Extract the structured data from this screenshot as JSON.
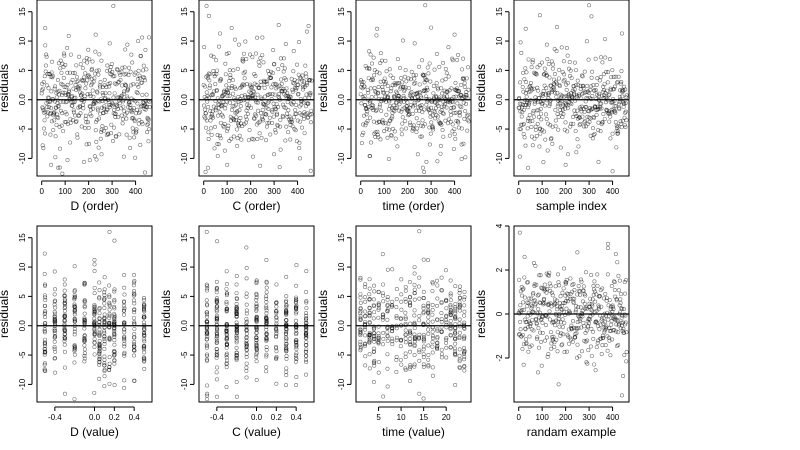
{
  "chart_data": [
    {
      "type": "scatter",
      "xlabel": "D (order)",
      "ylabel": "residuals",
      "xlim": [
        -20,
        470
      ],
      "ylim": [
        -13,
        17
      ],
      "xticks": [
        0,
        100,
        200,
        300,
        400
      ],
      "yticks": [
        -10,
        -5,
        0,
        5,
        10,
        15
      ],
      "ytick_labels": [
        "-10",
        "-5",
        "0.0",
        "5",
        "10",
        "15"
      ],
      "hline": 0,
      "x_kind": "uniform",
      "n_points": 460,
      "points": [
        [
          15,
          12.2
        ],
        [
          40,
          -11.1
        ],
        [
          70,
          -11.6
        ],
        [
          88,
          -12.6
        ],
        [
          110,
          -10.3
        ],
        [
          180,
          -10.6
        ],
        [
          205,
          -10.3
        ],
        [
          230,
          11.1
        ],
        [
          255,
          -9.3
        ],
        [
          290,
          9.6
        ],
        [
          305,
          16.0
        ],
        [
          350,
          -9.7
        ],
        [
          365,
          9.4
        ],
        [
          440,
          -12.4
        ]
      ]
    },
    {
      "type": "scatter",
      "xlabel": "C (order)",
      "ylabel": "residuals",
      "xlim": [
        -20,
        470
      ],
      "ylim": [
        -13,
        17
      ],
      "xticks": [
        0,
        100,
        200,
        300,
        400
      ],
      "yticks": [
        -10,
        -5,
        0,
        5,
        10,
        15
      ],
      "ytick_labels": [
        "-10",
        "-5",
        "0.0",
        "5",
        "10",
        "15"
      ],
      "hline": 0,
      "x_kind": "uniform",
      "n_points": 460,
      "points": [
        [
          8,
          -12.3
        ],
        [
          12,
          16.0
        ],
        [
          22,
          14.3
        ],
        [
          18,
          -11.6
        ],
        [
          60,
          -9.6
        ],
        [
          70,
          11.3
        ],
        [
          100,
          -11.1
        ],
        [
          150,
          9.4
        ],
        [
          210,
          -9.7
        ],
        [
          250,
          10.6
        ],
        [
          300,
          -9.3
        ],
        [
          350,
          9.5
        ],
        [
          410,
          -10.0
        ],
        [
          440,
          11.6
        ]
      ]
    },
    {
      "type": "scatter",
      "xlabel": "time (order)",
      "ylabel": "residuals",
      "xlim": [
        -20,
        470
      ],
      "ylim": [
        -13,
        17
      ],
      "xticks": [
        0,
        100,
        200,
        300,
        400
      ],
      "yticks": [
        -10,
        -5,
        0,
        5,
        10,
        15
      ],
      "ytick_labels": [
        "-10",
        "-5",
        "0.0",
        "5",
        "10",
        "15"
      ],
      "hline": 0,
      "x_kind": "uniform",
      "n_points": 460,
      "points": [
        [
          40,
          -9.6
        ],
        [
          70,
          12.1
        ],
        [
          120,
          -10.1
        ],
        [
          180,
          10.1
        ],
        [
          230,
          9.6
        ],
        [
          265,
          -11.6
        ],
        [
          270,
          -12.3
        ],
        [
          275,
          16.1
        ],
        [
          280,
          -10.6
        ],
        [
          300,
          12.3
        ],
        [
          340,
          -9.2
        ],
        [
          400,
          11.1
        ],
        [
          430,
          -10.1
        ]
      ]
    },
    {
      "type": "scatter",
      "xlabel": "sample index",
      "ylabel": "residuals",
      "xlim": [
        -20,
        470
      ],
      "ylim": [
        -13,
        17
      ],
      "xticks": [
        0,
        100,
        200,
        300,
        400
      ],
      "yticks": [
        -10,
        -5,
        0,
        5,
        10,
        15
      ],
      "ytick_labels": [
        "-10",
        "-5",
        "0.0",
        "5",
        "10",
        "15"
      ],
      "hline": 0,
      "x_kind": "uniform",
      "n_points": 460,
      "points": [
        [
          5,
          -9.7
        ],
        [
          30,
          12.1
        ],
        [
          40,
          -11.6
        ],
        [
          90,
          14.4
        ],
        [
          120,
          9.4
        ],
        [
          200,
          -11.1
        ],
        [
          210,
          -9.3
        ],
        [
          300,
          16.1
        ],
        [
          310,
          14.2
        ],
        [
          340,
          -10.6
        ],
        [
          400,
          -12.2
        ],
        [
          440,
          11.3
        ]
      ]
    },
    {
      "type": "scatter",
      "xlabel": "D (value)",
      "ylabel": "residuals",
      "xlim": [
        -0.58,
        0.58
      ],
      "ylim": [
        -13,
        17
      ],
      "xticks": [
        -0.4,
        0.0,
        0.2,
        0.4
      ],
      "xtick_labels": [
        "-0.4",
        "0.0",
        "0.2",
        "0.4"
      ],
      "yticks": [
        -10,
        -5,
        0,
        5,
        10,
        15
      ],
      "ytick_labels": [
        "-10",
        "-5",
        "0.0",
        "5",
        "10",
        "15"
      ],
      "hline": 0,
      "x_kind": "discrete",
      "x_values": [
        -0.5,
        -0.4,
        -0.3,
        -0.2,
        -0.1,
        0.0,
        0.05,
        0.1,
        0.15,
        0.2,
        0.3,
        0.4,
        0.5
      ],
      "n_points": 460,
      "points": [
        [
          -0.5,
          12.3
        ],
        [
          -0.3,
          -11.6
        ],
        [
          -0.2,
          -12.5
        ],
        [
          0.0,
          11.2
        ],
        [
          0.15,
          16.0
        ],
        [
          0.2,
          14.5
        ],
        [
          0.1,
          -10.3
        ],
        [
          0.3,
          -10.6
        ],
        [
          0.4,
          -9.4
        ]
      ]
    },
    {
      "type": "scatter",
      "xlabel": "C (value)",
      "ylabel": "residuals",
      "xlim": [
        -0.58,
        0.58
      ],
      "ylim": [
        -13,
        17
      ],
      "xticks": [
        -0.4,
        0.0,
        0.2,
        0.4
      ],
      "xtick_labels": [
        "-0.4",
        "0.0",
        "0.2",
        "0.4"
      ],
      "yticks": [
        -10,
        -5,
        0,
        5,
        10,
        15
      ],
      "ytick_labels": [
        "-10",
        "-5",
        "0.0",
        "5",
        "10",
        "15"
      ],
      "hline": 0,
      "x_kind": "discrete",
      "x_values": [
        -0.5,
        -0.4,
        -0.3,
        -0.2,
        -0.1,
        0.0,
        0.1,
        0.2,
        0.3,
        0.4,
        0.5
      ],
      "n_points": 460,
      "points": [
        [
          -0.5,
          16.0
        ],
        [
          -0.5,
          -12.5
        ],
        [
          -0.5,
          -11.6
        ],
        [
          -0.4,
          14.4
        ],
        [
          -0.2,
          -9.6
        ],
        [
          0.1,
          11.2
        ],
        [
          0.4,
          -10.1
        ],
        [
          0.5,
          9.3
        ]
      ]
    },
    {
      "type": "scatter",
      "xlabel": "time (value)",
      "ylabel": "residuals",
      "xlim": [
        0,
        25.5
      ],
      "ylim": [
        -13,
        17
      ],
      "xticks": [
        5,
        10,
        15,
        20
      ],
      "yticks": [
        -10,
        -5,
        0,
        5,
        10,
        15
      ],
      "ytick_labels": [
        "-10",
        "-5",
        "0.0",
        "5",
        "10",
        "15"
      ],
      "hline": 0,
      "x_kind": "discrete",
      "x_values": [
        1,
        2,
        3,
        4,
        5,
        6,
        7,
        8,
        9,
        10,
        11,
        12,
        13,
        14,
        15,
        16,
        17,
        18,
        19,
        20,
        21,
        22,
        23,
        24
      ],
      "n_points": 460,
      "points": [
        [
          6,
          12.2
        ],
        [
          14,
          16.1
        ],
        [
          14,
          -11.6
        ],
        [
          15,
          -12.4
        ],
        [
          13,
          10.0
        ],
        [
          16,
          11.2
        ],
        [
          4,
          -9.6
        ],
        [
          22,
          -10.1
        ]
      ]
    },
    {
      "type": "scatter",
      "xlabel": "randam example",
      "ylabel": "residuals",
      "xlim": [
        -20,
        470
      ],
      "ylim": [
        -4,
        4
      ],
      "xticks": [
        0,
        100,
        200,
        300,
        400
      ],
      "yticks": [
        -2,
        0,
        2,
        4
      ],
      "ytick_labels": [
        "-2",
        "0",
        "2",
        "4"
      ],
      "hline": 0,
      "x_kind": "uniform",
      "n_points": 460,
      "points": [
        [
          5,
          3.7
        ],
        [
          380,
          3.0
        ],
        [
          440,
          -3.7
        ],
        [
          170,
          -3.2
        ],
        [
          250,
          2.8
        ]
      ]
    }
  ]
}
